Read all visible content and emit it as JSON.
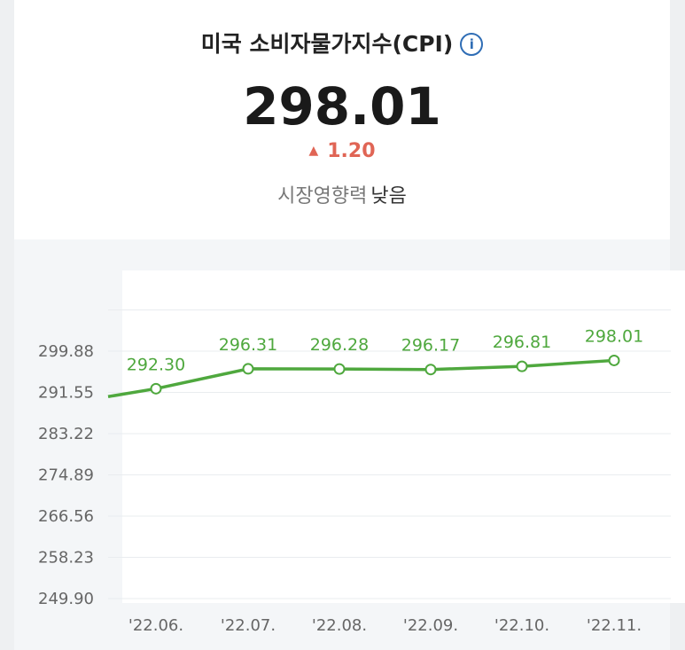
{
  "header": {
    "title": "미국 소비자물가지수(CPI)",
    "info_icon": "info-icon"
  },
  "summary": {
    "value": "298.01",
    "change": "1.20",
    "change_direction_icon": "up-triangle-icon",
    "impact_label": "시장영향력",
    "impact_level": "낮음"
  },
  "colors": {
    "line": "#4fa83e",
    "up": "#e06555",
    "info": "#2f6db5"
  },
  "chart_data": {
    "type": "line",
    "categories": [
      "'22.06.",
      "'22.07.",
      "'22.08.",
      "'22.09.",
      "'22.10.",
      "'22.11."
    ],
    "values": [
      292.3,
      296.31,
      296.28,
      296.17,
      296.81,
      298.01
    ],
    "data_labels": [
      "292.30",
      "296.31",
      "296.28",
      "296.17",
      "296.81",
      "298.01"
    ],
    "y_ticks": [
      "299.88",
      "291.55",
      "283.22",
      "274.89",
      "266.56",
      "258.23",
      "249.90"
    ],
    "ylim": [
      249.9,
      299.88
    ],
    "line_extends_left_from": 290.7,
    "grid": true
  }
}
